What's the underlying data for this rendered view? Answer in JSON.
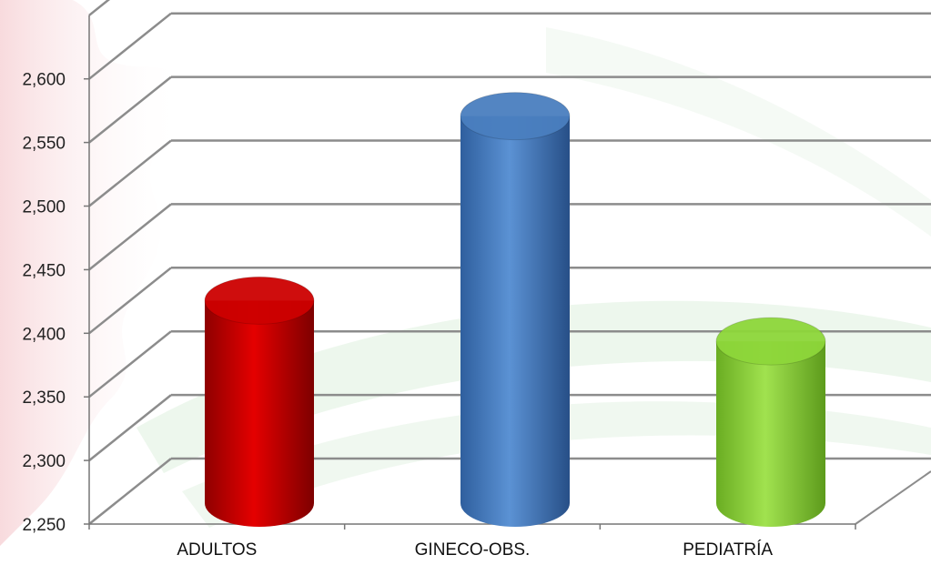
{
  "chart_data": {
    "type": "bar",
    "style": "3d-cylinder",
    "categories": [
      "ADULTOS",
      "GINECO-OBS.",
      "PEDIATRÍA"
    ],
    "values": [
      2420,
      2565,
      2388
    ],
    "bar_colors": [
      "#cc0000",
      "#4a7ebf",
      "#8dd63a"
    ],
    "ylim": [
      2250,
      2650
    ],
    "yticks": [
      "2,250",
      "2,300",
      "2,350",
      "2,400",
      "2,450",
      "2,500",
      "2,550",
      "2,600"
    ],
    "ytick_values": [
      2250,
      2300,
      2350,
      2400,
      2450,
      2500,
      2550,
      2600
    ],
    "grid": true,
    "legend": "none"
  },
  "colors": {
    "grid": "#8c8c8c",
    "background_ornament": "#e8a0a8",
    "background_swoosh": "#d8ecd8"
  }
}
